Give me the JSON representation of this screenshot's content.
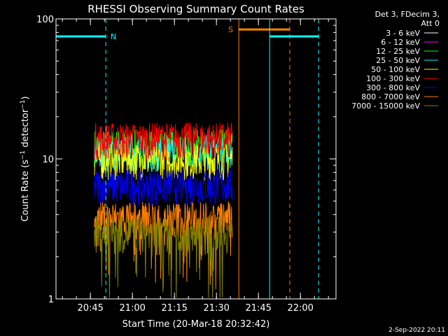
{
  "chart_data": {
    "type": "line",
    "title": "RHESSI Observing Summary Count Rates",
    "xlabel": "Start Time (20-Mar-18 20:32:42)",
    "ylabel_main": "Count Rate (s",
    "ylabel_sup1": "−1",
    "ylabel_mid": " detector",
    "ylabel_sup2": "−1",
    "ylabel_end": ")",
    "y_scale": "log",
    "ylim": [
      1,
      100
    ],
    "xlim_minutes_from_start": [
      0,
      100
    ],
    "x_ticks": [
      "20:45",
      "21:00",
      "21:15",
      "21:30",
      "21:45",
      "22:00"
    ],
    "y_ticks": [
      "1",
      "10",
      "100"
    ],
    "legend_header": [
      "Det 3, FDecim 3,",
      "Att 0"
    ],
    "legend_position": "top-right",
    "series": [
      {
        "name": "3 - 6 keV",
        "color": "#ffffff",
        "mean": 0
      },
      {
        "name": "6 - 12 keV",
        "color": "#ff00ff",
        "mean": 0
      },
      {
        "name": "12 - 25 keV",
        "color": "#00ff00",
        "mean": 12.5
      },
      {
        "name": "25 - 50 keV",
        "color": "#00ffff",
        "mean": 11.5
      },
      {
        "name": "50 - 100 keV",
        "color": "#ffff00",
        "mean": 10
      },
      {
        "name": "100 - 300 keV",
        "color": "#ff0000",
        "mean": 14
      },
      {
        "name": "300 - 800 keV",
        "color": "#0000ff",
        "mean": 6.5
      },
      {
        "name": "800 - 7000 keV",
        "color": "#ff8000",
        "mean": 3.8
      },
      {
        "name": "7000 - 15000 keV",
        "color": "#808000",
        "mean": 3
      }
    ],
    "data_interval_minutes": [
      13.7,
      63.0
    ],
    "night_label": "N",
    "saa_label": "S",
    "timestamp": "2-Sep-2022 20:11"
  }
}
